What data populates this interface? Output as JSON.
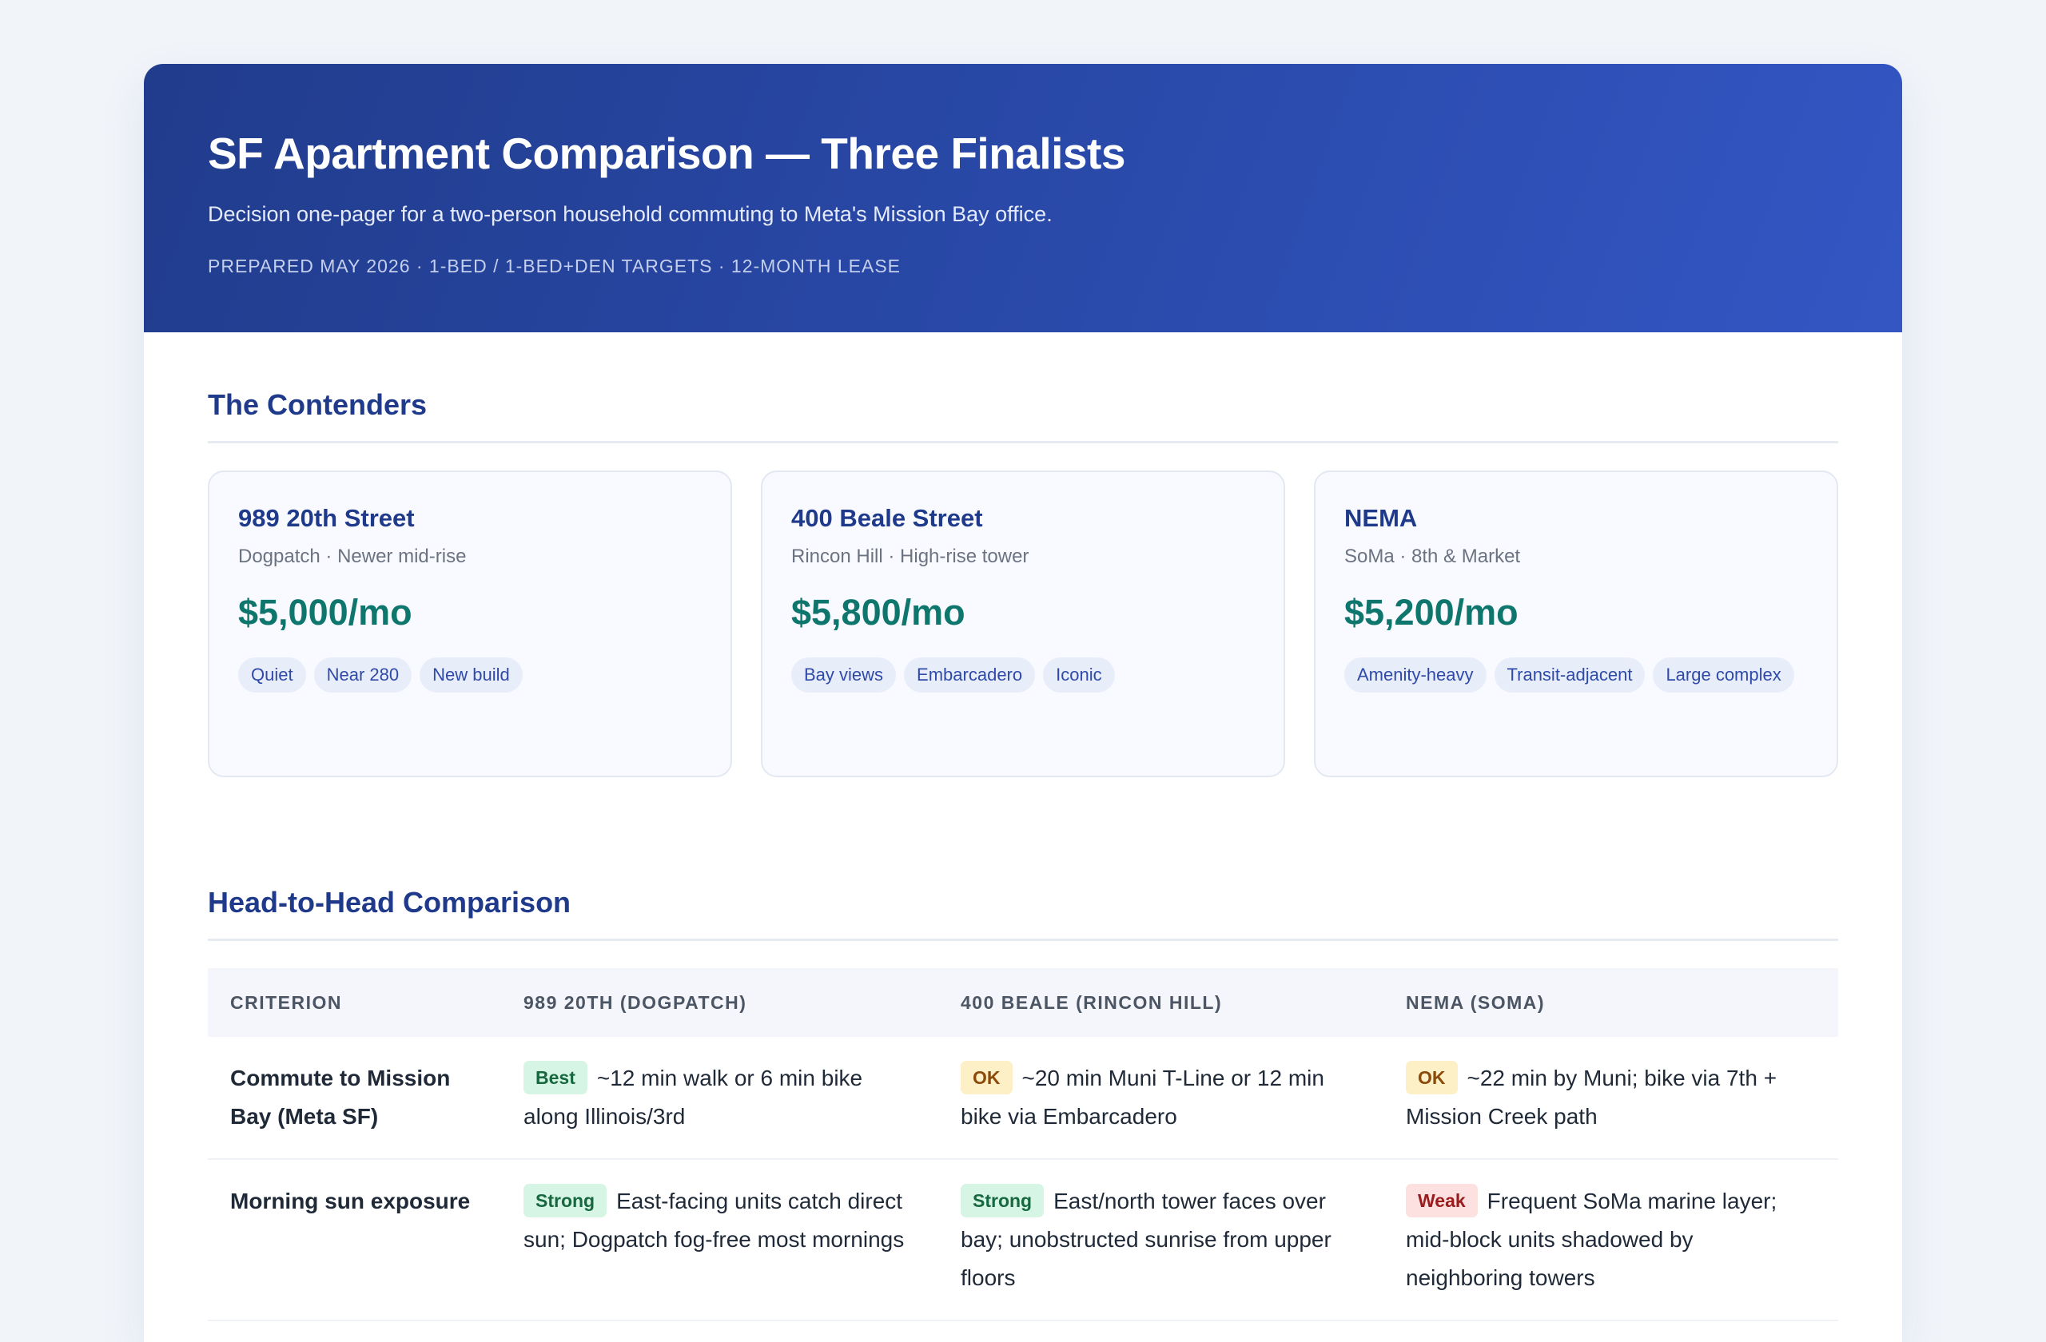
{
  "header": {
    "title": "SF Apartment Comparison — Three Finalists",
    "subtitle": "Decision one-pager for a two-person household commuting to Meta's Mission Bay office.",
    "meta": "PREPARED MAY 2026 · 1-BED / 1-BED+DEN TARGETS · 12-MONTH LEASE"
  },
  "contenders": {
    "title": "The Contenders",
    "cards": [
      {
        "name": "989 20th Street",
        "location": "Dogpatch · Newer mid-rise",
        "price": "$5,000/mo",
        "tags": [
          "Quiet",
          "Near 280",
          "New build"
        ]
      },
      {
        "name": "400 Beale Street",
        "location": "Rincon Hill · High-rise tower",
        "price": "$5,800/mo",
        "tags": [
          "Bay views",
          "Embarcadero",
          "Iconic"
        ]
      },
      {
        "name": "NEMA",
        "location": "SoMa · 8th & Market",
        "price": "$5,200/mo",
        "tags": [
          "Amenity-heavy",
          "Transit-adjacent",
          "Large complex"
        ]
      }
    ]
  },
  "comparison": {
    "title": "Head-to-Head Comparison",
    "columns": [
      "CRITERION",
      "989 20TH (DOGPATCH)",
      "400 BEALE (RINCON HILL)",
      "NEMA (SOMA)"
    ],
    "rows": [
      {
        "criterion": "Commute to Mission Bay (Meta SF)",
        "cells": [
          {
            "badge": "Best",
            "badge_type": "best",
            "text": "~12 min walk or 6 min bike along Illinois/3rd"
          },
          {
            "badge": "OK",
            "badge_type": "ok",
            "text": "~20 min Muni T-Line or 12 min bike via Embarcadero"
          },
          {
            "badge": "OK",
            "badge_type": "ok",
            "text": "~22 min by Muni; bike via 7th + Mission Creek path"
          }
        ]
      },
      {
        "criterion": "Morning sun exposure",
        "cells": [
          {
            "badge": "Strong",
            "badge_type": "strong",
            "text": "East-facing units catch direct sun; Dogpatch fog-free most mornings"
          },
          {
            "badge": "Strong",
            "badge_type": "strong",
            "text": "East/north tower faces over bay; unobstructed sunrise from upper floors"
          },
          {
            "badge": "Weak",
            "badge_type": "weak",
            "text": "Frequent SoMa marine layer; mid-block units shadowed by neighboring towers"
          }
        ]
      }
    ]
  }
}
